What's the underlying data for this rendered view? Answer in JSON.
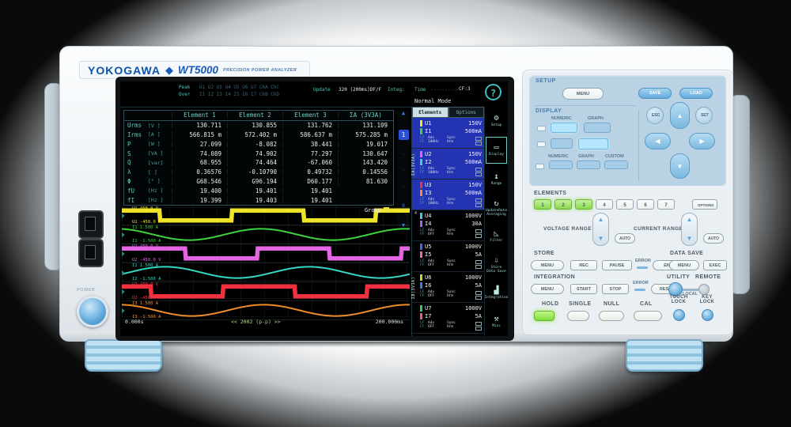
{
  "brand": {
    "logo": "YOKOGAWA",
    "diamond": "◆",
    "model": "WT5000",
    "tagline": "PRECISION POWER ANALYZER"
  },
  "left_side": {
    "power_label": "POWER"
  },
  "screen": {
    "header": {
      "peak_label": "Peak",
      "peak_channels": "U1 U2 U3 U4 U5 U6 U7 ChA ChC",
      "over_label": "Over",
      "over_channels": "I1 I2 I3 I4 I5 I6 I7 ChB ChD",
      "update_label": "Update",
      "update_value": "320 (200ms)DF/F",
      "integ_label": "Integ:",
      "time_label": "Time",
      "time_value": "-----:--:--",
      "mode": "Normal Mode",
      "cf": "CF:3",
      "help": "?"
    },
    "table": {
      "columns": [
        "Element 1",
        "Element 2",
        "Element 3",
        "ΣA (3V3A)"
      ],
      "rows": [
        {
          "name": "Urms",
          "unit": "[V  ]",
          "values": [
            "130.711",
            "130.855",
            "131.762",
            "131.109"
          ]
        },
        {
          "name": "Irms",
          "unit": "[A  ]",
          "values": [
            "566.815 m",
            "572.402 m",
            "586.637 m",
            "575.285 m"
          ]
        },
        {
          "name": "P",
          "unit": "[W  ]",
          "values": [
            "27.099",
            "-8.082",
            "38.441",
            "19.017"
          ]
        },
        {
          "name": "S",
          "unit": "[VA ]",
          "values": [
            "74.089",
            "74.902",
            "77.297",
            "130.647"
          ]
        },
        {
          "name": "Q",
          "unit": "[var]",
          "values": [
            "68.955",
            "74.464",
            "-67.060",
            "143.420"
          ]
        },
        {
          "name": "λ",
          "unit": "[   ]",
          "values": [
            "0.36576",
            "-0.10790",
            "0.49732",
            "0.14556"
          ]
        },
        {
          "name": "Φ",
          "unit": "[°  ]",
          "values": [
            "G68.546",
            "G96.194",
            "D60.177",
            "81.630"
          ]
        },
        {
          "name": "fU",
          "unit": "[Hz ]",
          "values": [
            "19.400",
            "19.401",
            "19.401",
            ""
          ]
        },
        {
          "name": "fI",
          "unit": "[Hz ]",
          "values": [
            "19.399",
            "19.403",
            "19.401",
            ""
          ]
        }
      ]
    },
    "pager": {
      "up": "▲",
      "current": "1",
      "dots": [
        "·",
        "·",
        "·"
      ],
      "last": "9",
      "down": "▼"
    },
    "waveform": {
      "group_label": "Group",
      "time_start": "0.000s",
      "points_label": "<< 2002 (p-p) >>",
      "time_end": "200.000ms",
      "channels": [
        {
          "name": "U1",
          "type": "square",
          "color": "#f0e42a",
          "phase": 86,
          "top_label": "U1  450.0 V",
          "bottom_label": "U1 -450.0 V"
        },
        {
          "name": "I1",
          "type": "sine",
          "color": "#3fd43f",
          "phase": 102,
          "top_label": "I1  1.500 A",
          "bottom_label": "I1 -1.500 A"
        },
        {
          "name": "U2",
          "type": "square",
          "color": "#e464e4",
          "phase": 22,
          "top_label": "U2  450.0 V",
          "bottom_label": "U2 -450.0 V"
        },
        {
          "name": "I2",
          "type": "sine",
          "color": "#36d8c4",
          "phase": -18,
          "top_label": "I2  1.500 A",
          "bottom_label": "I2 -1.500 A"
        },
        {
          "name": "U3",
          "type": "square",
          "color": "#f23040",
          "phase": 108,
          "top_label": "U3  450.0 V",
          "bottom_label": "U3 -450.0 V"
        },
        {
          "name": "I3",
          "type": "sine",
          "color": "#f08c2c",
          "phase": 95,
          "top_label": "I3  1.500 A",
          "bottom_label": "I3 -1.500 A"
        }
      ]
    },
    "elements_panel": {
      "tabs": [
        {
          "label": "Elements",
          "selected": true
        },
        {
          "label": "Options",
          "selected": false
        }
      ],
      "group_a": "ΣA(3V3A)",
      "group_b": "ΣB(3V3A)",
      "sub": {
        "lf": "LF",
        "ff": "FF",
        "adv": "Adv",
        "sync": "Sync",
        "hrm": "Hrm"
      },
      "entries": [
        {
          "num": "1",
          "u": "U1",
          "u_val": "150V",
          "u_color": "#f0e42a",
          "i": "I1",
          "i_val": "500mA",
          "i_color": "#3fd43f",
          "adv_val": "100Hz",
          "selected": true
        },
        {
          "num": "2",
          "u": "U2",
          "u_val": "150V",
          "u_color": "#e464e4",
          "i": "I2",
          "i_val": "500mA",
          "i_color": "#36d8c4",
          "adv_val": "100Hz",
          "selected": true
        },
        {
          "num": "3",
          "u": "U3",
          "u_val": "150V",
          "u_color": "#f23040",
          "i": "I3",
          "i_val": "500mA",
          "i_color": "#f08c2c",
          "adv_val": "100Hz",
          "selected": true
        },
        {
          "num": "4",
          "u": "U4",
          "u_val": "1000V",
          "u_color": "#3cc8ec",
          "i": "I4",
          "i_val": "30A",
          "i_color": "#9a6ae8",
          "adv_val": "OFF",
          "selected": false
        },
        {
          "num": "5",
          "u": "U5",
          "u_val": "1000V",
          "u_color": "#3a6af0",
          "i": "I5",
          "i_val": "5A",
          "i_color": "#f06ab4",
          "adv_val": "OFF",
          "selected": false
        },
        {
          "num": "6",
          "u": "U6",
          "u_val": "1000V",
          "u_color": "#c0dc28",
          "i": "I6",
          "i_val": "5A",
          "i_color": "#2e82e8",
          "adv_val": "OFF",
          "selected": false
        },
        {
          "num": "7",
          "u": "U7",
          "u_val": "1000V",
          "u_color": "#30cc58",
          "i": "I7",
          "i_val": "5A",
          "i_color": "#f05a7a",
          "adv_val": "OFF",
          "selected": false
        }
      ]
    },
    "icon_rail": [
      {
        "icon": "⚙",
        "label": "Setup",
        "name": "setup",
        "selected": false
      },
      {
        "icon": "▭",
        "label": "Display",
        "name": "display",
        "selected": true
      },
      {
        "icon": "↨",
        "label": "Range",
        "name": "range",
        "selected": false
      },
      {
        "icon": "↻",
        "label": "UpdateRate Averaging",
        "name": "update-rate-averaging",
        "selected": false
      },
      {
        "icon": "◺",
        "label": "Filter",
        "name": "filter",
        "selected": false
      },
      {
        "icon": "⇩",
        "label": "Store Data Save",
        "name": "store-data-save",
        "selected": false
      },
      {
        "icon": "▟",
        "label": "Integration",
        "name": "integration",
        "selected": false
      },
      {
        "icon": "⚒",
        "label": "Misc",
        "name": "misc",
        "selected": false
      }
    ]
  },
  "panel": {
    "setup": {
      "label": "SETUP",
      "menu": "MENU",
      "save": "SAVE",
      "load": "LOAD"
    },
    "display": {
      "label": "DISPLAY",
      "labels_row1": [
        "NUMERIC",
        "GRAPH"
      ],
      "labels_row3": [
        "NUMERIC",
        "GRAPH",
        "CUSTOM"
      ]
    },
    "nav": {
      "esc": "ESC",
      "set": "SET",
      "up": "▲",
      "down": "▼",
      "left": "◀",
      "right": "▶"
    },
    "elements": {
      "label": "ELEMENTS",
      "buttons": [
        "1",
        "2",
        "3",
        "4",
        "5",
        "6",
        "7"
      ],
      "active": [
        true,
        true,
        true,
        false,
        false,
        false,
        false
      ],
      "options": "OPTIONS"
    },
    "ranges": {
      "voltage_label": "VOLTAGE RANGE",
      "current_label": "CURRENT RANGE",
      "auto": "AUTO",
      "up": "▲",
      "down": "▼"
    },
    "store": {
      "label": "STORE",
      "menu": "MENU",
      "rec": "REC",
      "pause": "PAUSE",
      "error": "ERROR",
      "end": "END"
    },
    "data_save": {
      "label": "DATA SAVE",
      "menu": "MENU",
      "exec": "EXEC"
    },
    "integration": {
      "label": "INTEGRATION",
      "menu": "MENU",
      "start": "START",
      "stop": "STOP",
      "error": "ERROR",
      "reset": "RESET"
    },
    "utility": {
      "utility": "UTILITY",
      "remote": "REMOTE",
      "local": "LOCAL"
    },
    "bottom": {
      "hold": "HOLD",
      "single": "SINGLE",
      "null_btn": "NULL",
      "cal": "CAL",
      "touch_lock": "TOUCH LOCK",
      "key_lock": "KEY LOCK"
    }
  }
}
